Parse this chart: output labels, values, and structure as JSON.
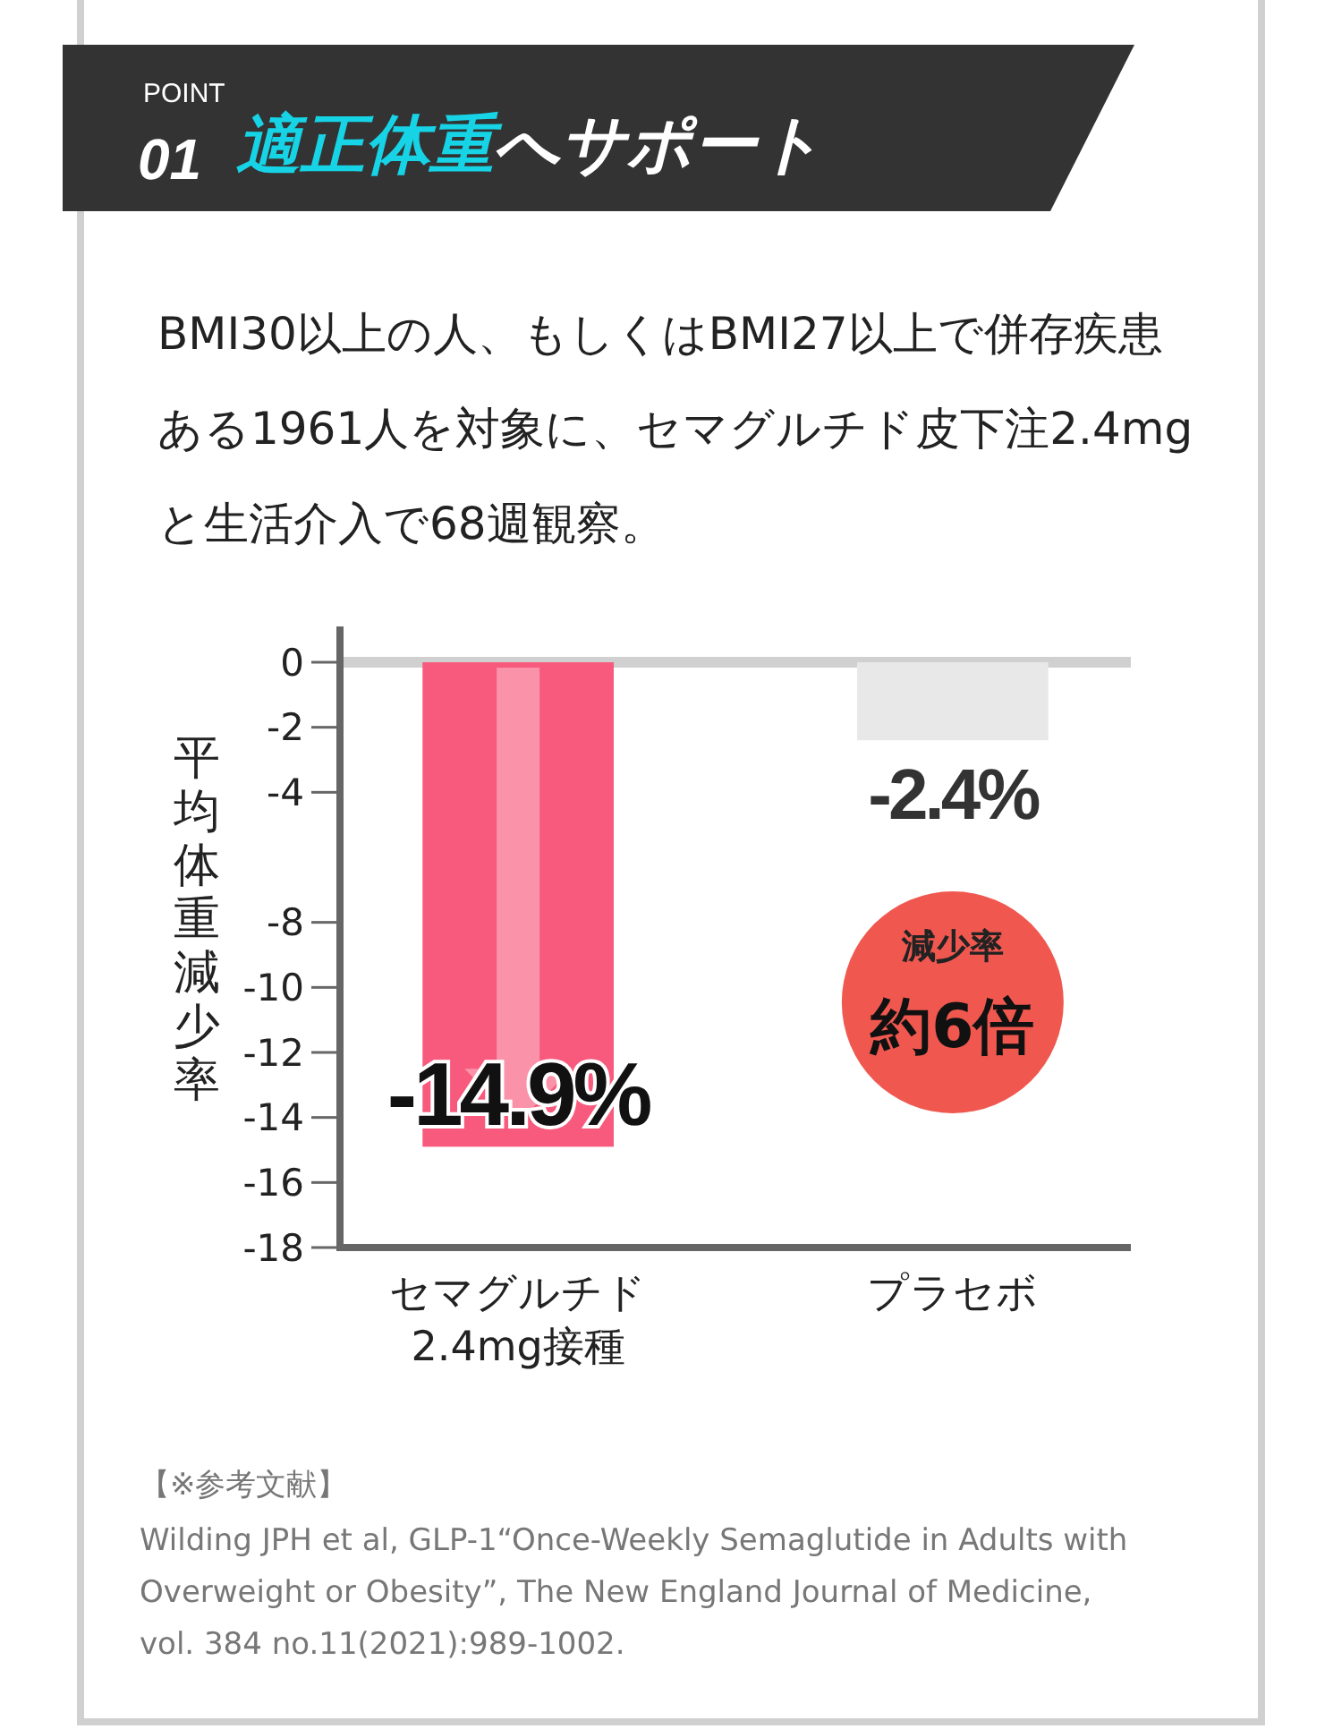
{
  "chart_data": {
    "type": "bar",
    "title": "適正体重へサポート",
    "subtitle": "BMI30以上の人、もしくはBMI27以上で併存疾患ある1961人を対象に、セマグルチド皮下注2.4mgと生活介入で68週観察。",
    "ylabel": "平均体重減少率",
    "categories": [
      "セマグルチド\n2.4mg接種",
      "プラセボ"
    ],
    "values": [
      -14.9,
      -2.4
    ],
    "colors": [
      "#f75a7c",
      "#e8e8e8"
    ],
    "value_labels": [
      "-14.9%",
      "-2.4%"
    ],
    "ylim": [
      -18,
      0
    ],
    "yticks": [
      0,
      -2,
      -4,
      -8,
      -10,
      -12,
      -14,
      -16,
      -18
    ],
    "grid": false,
    "annotations": [
      "POINT",
      "01",
      "減少率",
      "約6倍",
      "【※参考文献】",
      "Wilding JPH et al, GLP-1“Once-Weekly Semaglutide in Adults with Overweight or Obesity”, The New England Journal of Medicine, vol. 384 no.11(2021):989-1002."
    ]
  }
}
